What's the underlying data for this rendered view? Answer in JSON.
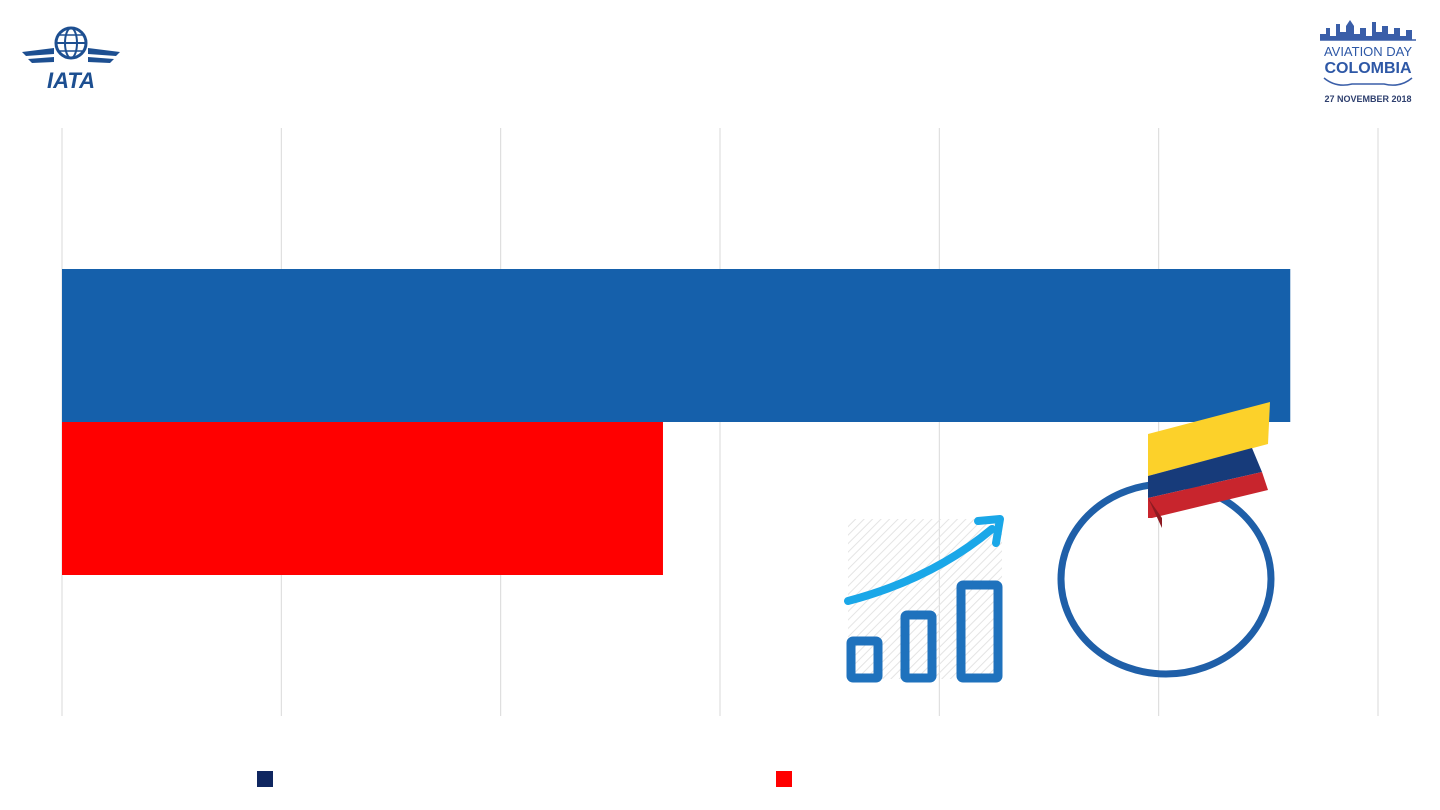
{
  "branding": {
    "left_logo_text": "IATA",
    "right_logo_line1": "AVIATION DAY",
    "right_logo_line2": "COLOMBIA",
    "right_logo_line3": "27 NOVEMBER 2018"
  },
  "colors": {
    "series_a": "#1560ab",
    "series_b": "#ff0000",
    "legend_a": "#0f2660",
    "legend_b": "#ff0000",
    "gridline": "#d9d9d9",
    "icon_blue": "#1f72bd",
    "icon_arrow": "#1aa7e8"
  },
  "chart_data": {
    "type": "bar",
    "orientation": "horizontal",
    "xlim": [
      0,
      6
    ],
    "grid": true,
    "series": [
      {
        "values": [
          5.6
        ]
      },
      {
        "values": [
          2.74
        ]
      }
    ]
  },
  "legend": [
    {
      "label": ""
    },
    {
      "label": ""
    }
  ],
  "icons": [
    "growth-chart-icon",
    "colombia-flag-target-icon"
  ]
}
